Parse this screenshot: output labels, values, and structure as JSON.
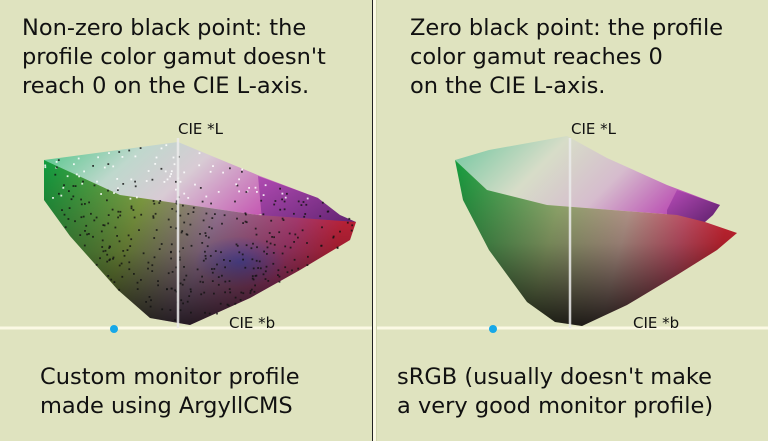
{
  "left_panel": {
    "heading": "Non-zero black point: the\nprofile color gamut doesn't\nreach 0 on the CIE L-axis.",
    "caption": "Custom monitor profile\nmade using ArgyllCMS",
    "axis_l_label": "CIE *L",
    "axis_b_label": "CIE *b"
  },
  "right_panel": {
    "heading": "Zero black point: the profile\ncolor gamut reaches 0\non the CIE L-axis.",
    "caption": "sRGB (usually doesn't make\na very good monitor profile)",
    "axis_l_label": "CIE *L",
    "axis_b_label": "CIE *b"
  },
  "colors": {
    "background": "#dfe3bf",
    "axis_line": "#fbf9e4",
    "origin_dot": "#17a8e8"
  }
}
